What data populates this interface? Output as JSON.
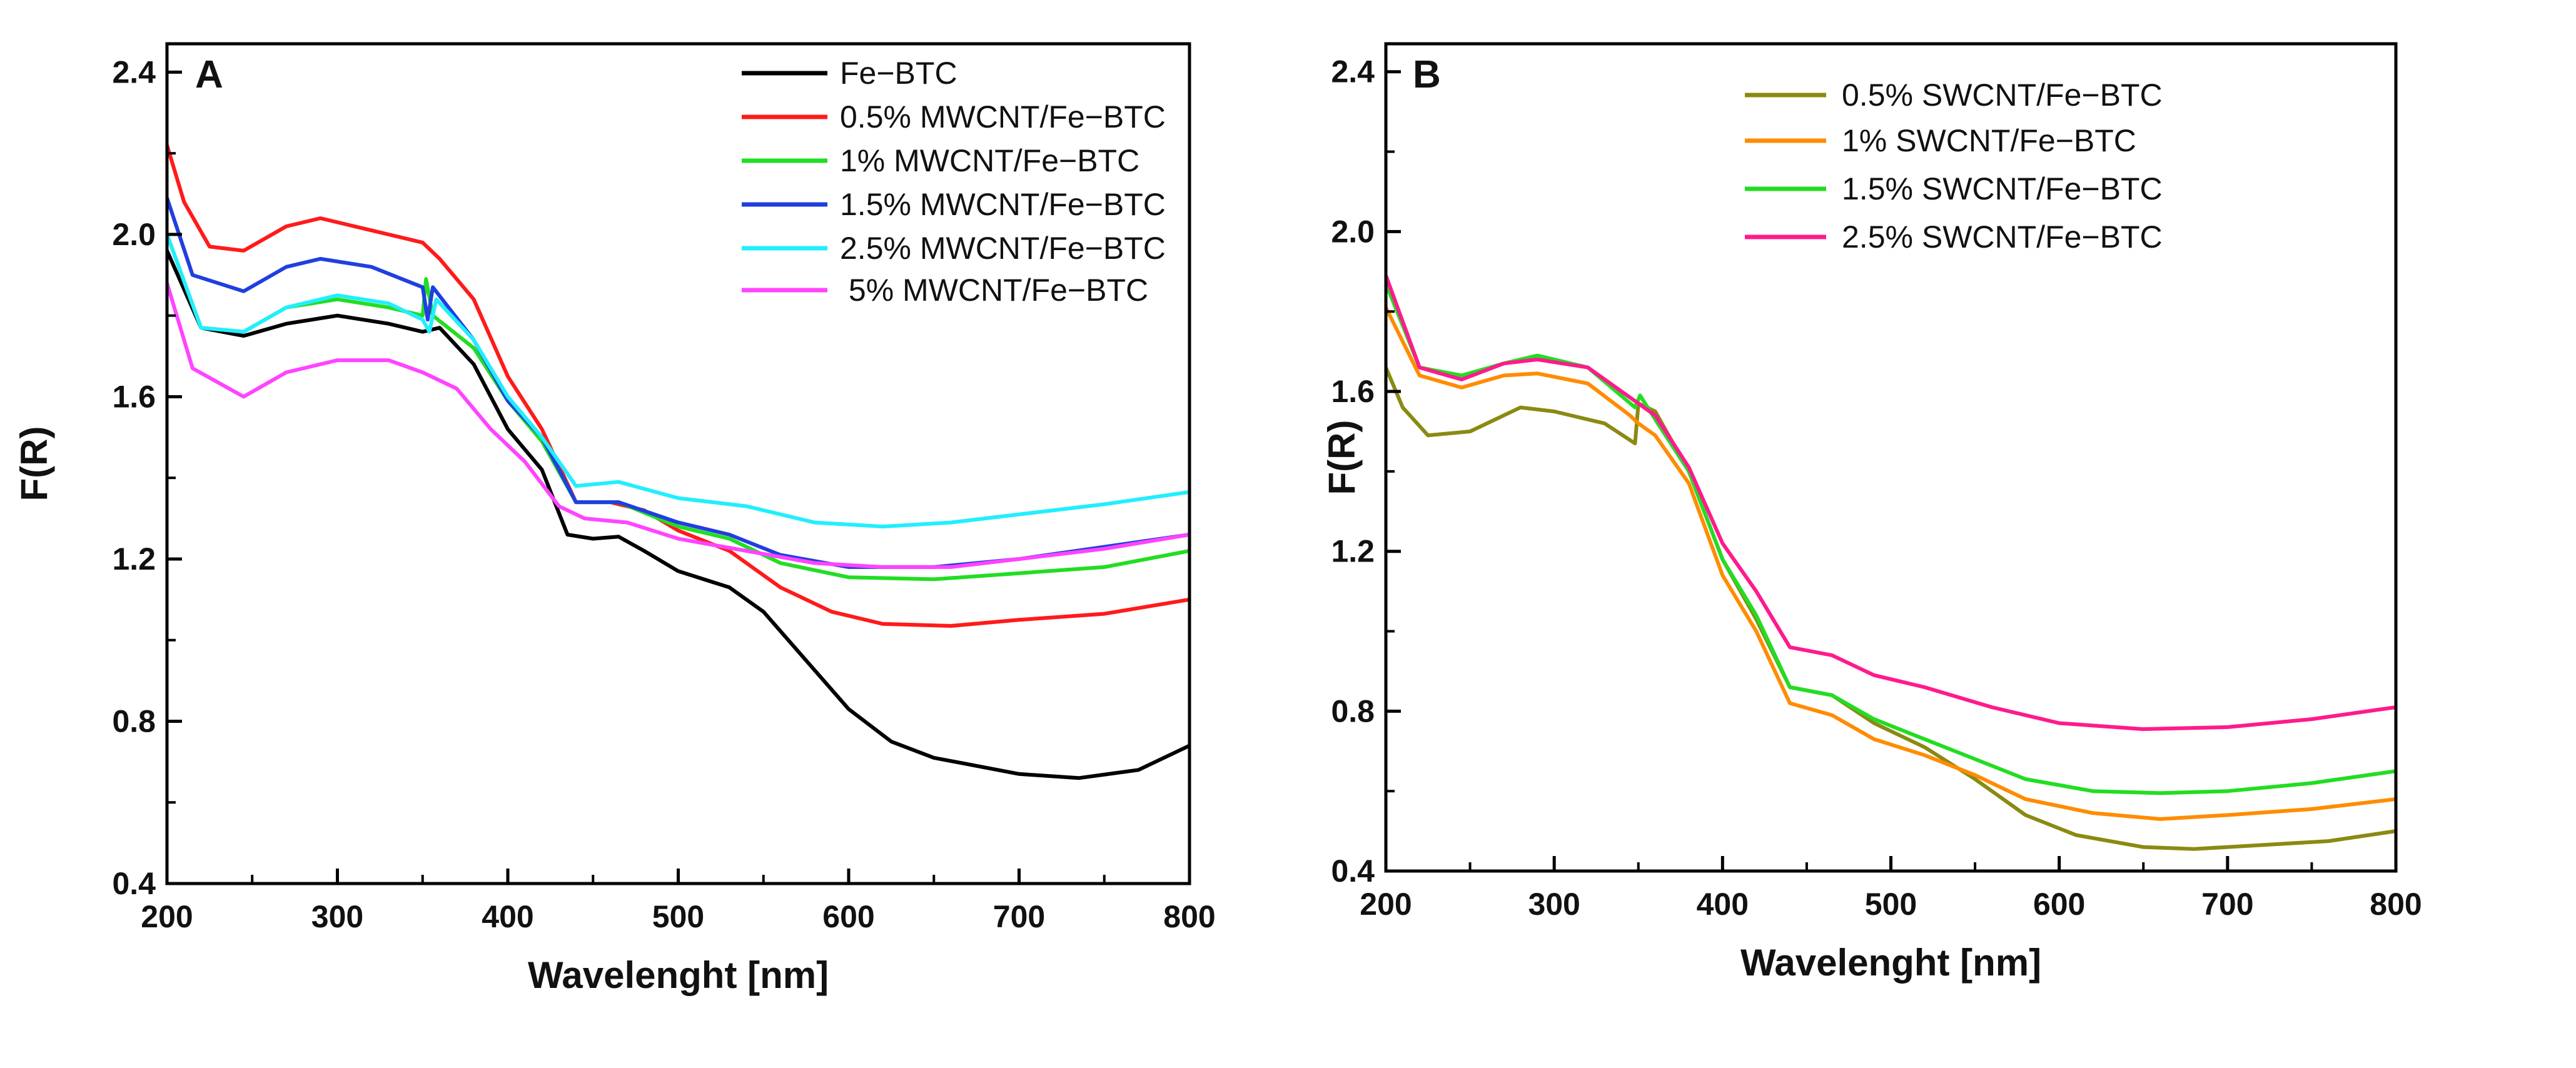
{
  "chart_data": [
    {
      "type": "line",
      "panel_label": "A",
      "xlabel": "Wavelenght [nm]",
      "ylabel": "F(R)",
      "xlim": [
        200,
        800
      ],
      "ylim": [
        0.4,
        2.47
      ],
      "xticks": [
        "200",
        "300",
        "400",
        "500",
        "600",
        "700",
        "800"
      ],
      "yticks": [
        "0.4",
        "0.8",
        "1.2",
        "1.6",
        "2.0",
        "2.4"
      ],
      "legend_position": "top-right",
      "grid": false,
      "series": [
        {
          "name": "Fe−BTC",
          "color": "#000000",
          "x": [
            200,
            220,
            245,
            270,
            300,
            330,
            350,
            360,
            380,
            400,
            420,
            435,
            450,
            465,
            480,
            500,
            530,
            550,
            575,
            600,
            625,
            650,
            700,
            735,
            770,
            800
          ],
          "y": [
            1.96,
            1.77,
            1.75,
            1.78,
            1.8,
            1.78,
            1.76,
            1.77,
            1.68,
            1.52,
            1.42,
            1.26,
            1.25,
            1.255,
            1.22,
            1.17,
            1.13,
            1.07,
            0.95,
            0.83,
            0.75,
            0.71,
            0.67,
            0.66,
            0.68,
            0.74
          ]
        },
        {
          "name": "0.5% MWCNT/Fe−BTC",
          "color": "#ff1a1a",
          "x": [
            200,
            210,
            225,
            245,
            270,
            290,
            320,
            350,
            360,
            380,
            400,
            420,
            440,
            460,
            480,
            500,
            530,
            560,
            590,
            620,
            660,
            700,
            750,
            800
          ],
          "y": [
            2.22,
            2.08,
            1.97,
            1.96,
            2.02,
            2.04,
            2.01,
            1.98,
            1.94,
            1.84,
            1.65,
            1.52,
            1.34,
            1.34,
            1.32,
            1.27,
            1.22,
            1.13,
            1.07,
            1.04,
            1.035,
            1.05,
            1.065,
            1.1
          ]
        },
        {
          "name": "1% MWCNT/Fe−BTC",
          "color": "#22dd22",
          "x": [
            200,
            220,
            245,
            270,
            300,
            330,
            350,
            352,
            356,
            380,
            400,
            420,
            440,
            465,
            500,
            530,
            560,
            600,
            650,
            700,
            750,
            800
          ],
          "y": [
            2.0,
            1.77,
            1.76,
            1.82,
            1.84,
            1.82,
            1.8,
            1.89,
            1.8,
            1.72,
            1.59,
            1.49,
            1.34,
            1.34,
            1.28,
            1.25,
            1.19,
            1.155,
            1.15,
            1.165,
            1.18,
            1.22
          ]
        },
        {
          "name": "1.5% MWCNT/Fe−BTC",
          "color": "#1f3fe0",
          "x": [
            200,
            215,
            245,
            270,
            290,
            320,
            350,
            353,
            356,
            380,
            400,
            420,
            440,
            465,
            500,
            530,
            560,
            600,
            650,
            700,
            800
          ],
          "y": [
            2.09,
            1.9,
            1.86,
            1.92,
            1.94,
            1.92,
            1.87,
            1.79,
            1.87,
            1.74,
            1.59,
            1.5,
            1.34,
            1.34,
            1.29,
            1.26,
            1.21,
            1.18,
            1.18,
            1.2,
            1.26
          ]
        },
        {
          "name": "2.5% MWCNT/Fe−BTC",
          "color": "#22eeff",
          "x": [
            200,
            220,
            245,
            270,
            300,
            330,
            350,
            354,
            358,
            380,
            400,
            420,
            440,
            465,
            500,
            540,
            580,
            620,
            660,
            700,
            750,
            800
          ],
          "y": [
            2.0,
            1.77,
            1.76,
            1.82,
            1.85,
            1.83,
            1.79,
            1.76,
            1.84,
            1.74,
            1.6,
            1.5,
            1.38,
            1.39,
            1.35,
            1.33,
            1.29,
            1.28,
            1.29,
            1.31,
            1.335,
            1.365
          ]
        },
        {
          "name": " 5% MWCNT/Fe−BTC",
          "color": "#ff44ff",
          "x": [
            200,
            215,
            245,
            270,
            300,
            330,
            350,
            370,
            390,
            410,
            430,
            445,
            470,
            500,
            540,
            580,
            620,
            660,
            700,
            750,
            800
          ],
          "y": [
            1.88,
            1.67,
            1.6,
            1.66,
            1.69,
            1.69,
            1.66,
            1.62,
            1.52,
            1.44,
            1.33,
            1.3,
            1.29,
            1.25,
            1.22,
            1.19,
            1.18,
            1.18,
            1.2,
            1.225,
            1.26
          ]
        }
      ]
    },
    {
      "type": "line",
      "panel_label": "B",
      "xlabel": "Wavelenght [nm]",
      "ylabel": "F(R)",
      "xlim": [
        200,
        800
      ],
      "ylim": [
        0.4,
        2.47
      ],
      "xticks": [
        "200",
        "300",
        "400",
        "500",
        "600",
        "700",
        "800"
      ],
      "yticks": [
        "0.4",
        "0.8",
        "1.2",
        "1.6",
        "2.0",
        "2.4"
      ],
      "legend_position": "top-right",
      "grid": false,
      "series": [
        {
          "name": "0.5% SWCNT/Fe−BTC",
          "color": "#8a8a12",
          "x": [
            200,
            210,
            225,
            250,
            280,
            300,
            330,
            348,
            350,
            360,
            380,
            400,
            420,
            440,
            465,
            490,
            520,
            550,
            580,
            610,
            650,
            680,
            720,
            760,
            800
          ],
          "y": [
            1.66,
            1.56,
            1.49,
            1.5,
            1.56,
            1.55,
            1.52,
            1.47,
            1.57,
            1.55,
            1.4,
            1.18,
            1.03,
            0.86,
            0.84,
            0.77,
            0.71,
            0.63,
            0.54,
            0.49,
            0.46,
            0.455,
            0.465,
            0.475,
            0.5
          ]
        },
        {
          "name": "1% SWCNT/Fe−BTC",
          "color": "#ff8c00",
          "x": [
            200,
            220,
            245,
            270,
            290,
            320,
            345,
            350,
            360,
            380,
            400,
            420,
            440,
            465,
            490,
            520,
            550,
            580,
            620,
            660,
            700,
            750,
            800
          ],
          "y": [
            1.81,
            1.64,
            1.61,
            1.64,
            1.645,
            1.62,
            1.54,
            1.52,
            1.49,
            1.37,
            1.14,
            1.0,
            0.82,
            0.79,
            0.73,
            0.69,
            0.64,
            0.58,
            0.545,
            0.53,
            0.54,
            0.555,
            0.58
          ]
        },
        {
          "name": "1.5% SWCNT/Fe−BTC",
          "color": "#22dd22",
          "x": [
            200,
            220,
            245,
            270,
            290,
            320,
            348,
            351,
            360,
            380,
            400,
            420,
            440,
            465,
            490,
            520,
            550,
            580,
            620,
            660,
            700,
            750,
            800
          ],
          "y": [
            1.87,
            1.66,
            1.64,
            1.67,
            1.69,
            1.66,
            1.56,
            1.59,
            1.53,
            1.4,
            1.18,
            1.04,
            0.86,
            0.84,
            0.78,
            0.73,
            0.68,
            0.63,
            0.6,
            0.595,
            0.6,
            0.62,
            0.65
          ]
        },
        {
          "name": "2.5% SWCNT/Fe−BTC",
          "color": "#ff1a8c",
          "x": [
            200,
            220,
            245,
            270,
            290,
            320,
            350,
            360,
            380,
            400,
            420,
            440,
            465,
            490,
            520,
            560,
            600,
            650,
            700,
            750,
            800
          ],
          "y": [
            1.89,
            1.66,
            1.63,
            1.67,
            1.68,
            1.66,
            1.57,
            1.54,
            1.41,
            1.22,
            1.1,
            0.96,
            0.94,
            0.89,
            0.86,
            0.81,
            0.77,
            0.755,
            0.76,
            0.78,
            0.81
          ]
        }
      ]
    }
  ]
}
